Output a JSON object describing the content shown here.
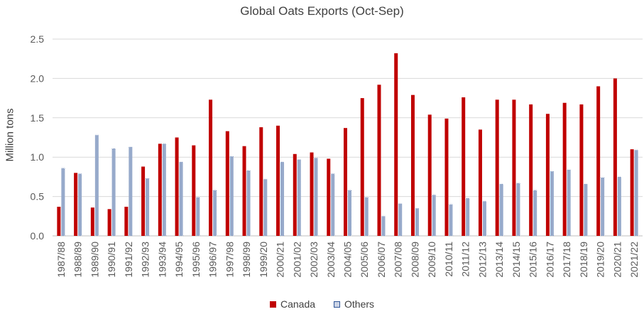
{
  "chart_data": {
    "type": "bar",
    "title": "Global Oats Exports (Oct-Sep)",
    "xlabel": "",
    "ylabel": "Million tons",
    "ylim": [
      0,
      2.5
    ],
    "yticks": [
      "0.0",
      "0.5",
      "1.0",
      "1.5",
      "2.0",
      "2.5"
    ],
    "grid": "horizontal",
    "legend_position": "bottom",
    "colors": {
      "Canada": "#c00000",
      "Others": "#2f5597"
    },
    "categories": [
      "1987/88",
      "1988/89",
      "1989/90",
      "1990/91",
      "1991/92",
      "1992/93",
      "1993/94",
      "1994/95",
      "1995/96",
      "1996/97",
      "1997/98",
      "1998/99",
      "1999/20",
      "2000/21",
      "2001/02",
      "2002/03",
      "2003/04",
      "2004/05",
      "2005/06",
      "2006/07",
      "2007/08",
      "2008/09",
      "2009/10",
      "2010/11",
      "2011/12",
      "2012/13",
      "2013/14",
      "2014/15",
      "2015/16",
      "2016/17",
      "2017/18",
      "2018/19",
      "2019/20",
      "2020/21",
      "2021/22"
    ],
    "series": [
      {
        "name": "Canada",
        "values": [
          0.37,
          0.8,
          0.36,
          0.34,
          0.37,
          0.88,
          1.17,
          1.25,
          1.15,
          1.73,
          1.33,
          1.14,
          1.38,
          1.4,
          1.04,
          1.06,
          0.98,
          1.37,
          1.75,
          1.92,
          2.32,
          1.79,
          1.54,
          1.49,
          1.76,
          1.35,
          1.73,
          1.73,
          1.67,
          1.55,
          1.69,
          1.67,
          1.9,
          2.0,
          1.1
        ]
      },
      {
        "name": "Others",
        "values": [
          0.86,
          0.79,
          1.28,
          1.11,
          1.13,
          0.73,
          1.17,
          0.94,
          0.49,
          0.58,
          1.01,
          0.83,
          0.72,
          0.94,
          0.97,
          0.99,
          0.79,
          0.58,
          0.49,
          0.25,
          0.41,
          0.35,
          0.52,
          0.4,
          0.48,
          0.44,
          0.66,
          0.67,
          0.58,
          0.82,
          0.84,
          0.66,
          0.74,
          0.75,
          1.09
        ]
      }
    ]
  }
}
